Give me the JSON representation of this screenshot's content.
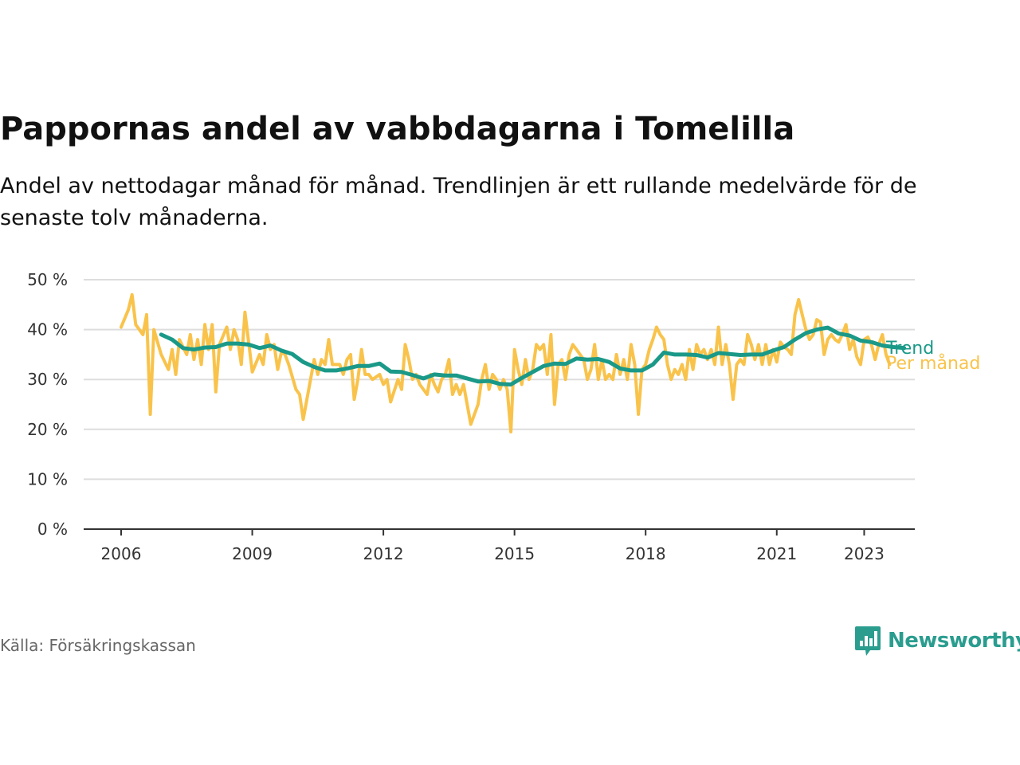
{
  "title": "Pappornas andel av vabbdagarna i Tomelilla",
  "subtitle": "Andel av nettodagar månad för månad. Trendlinjen är ett rullande medelvärde för de senaste tolv månaderna.",
  "source": "Källa: Försäkringskassan",
  "brand": {
    "name": "Newsworthy",
    "icon": "newsworthy-logo-icon"
  },
  "colors": {
    "monthly": "#f9c34b",
    "trend": "#1a9988",
    "grid": "#dddddd",
    "axis": "#333333",
    "brand": "#2a9d8f"
  },
  "chart_data": {
    "type": "line",
    "x_axis": {
      "type": "date",
      "ticks": [
        "2006",
        "2009",
        "2012",
        "2015",
        "2018",
        "2021",
        "2023"
      ],
      "range": [
        "2005-10",
        "2024-10"
      ]
    },
    "y_axis": {
      "ticks": [
        "0 %",
        "10 %",
        "20 %",
        "30 %",
        "40 %",
        "50 %"
      ],
      "range": [
        0,
        50
      ],
      "unit": "%"
    },
    "grid": "horizontal",
    "series": [
      {
        "name": "Per månad",
        "color": "#f9c34b",
        "points": [
          [
            "2006-01",
            40.5
          ],
          [
            "2006-03",
            44
          ],
          [
            "2006-04",
            47
          ],
          [
            "2006-05",
            41
          ],
          [
            "2006-07",
            39
          ],
          [
            "2006-08",
            43
          ],
          [
            "2006-09",
            23
          ],
          [
            "2006-10",
            40
          ],
          [
            "2006-12",
            35
          ],
          [
            "2007-02",
            32
          ],
          [
            "2007-03",
            36
          ],
          [
            "2007-04",
            31
          ],
          [
            "2007-05",
            38
          ],
          [
            "2007-07",
            35
          ],
          [
            "2007-08",
            39
          ],
          [
            "2007-09",
            34
          ],
          [
            "2007-10",
            38
          ],
          [
            "2007-11",
            33
          ],
          [
            "2007-12",
            41
          ],
          [
            "2008-01",
            36
          ],
          [
            "2008-02",
            41
          ],
          [
            "2008-03",
            27.5
          ],
          [
            "2008-04",
            37
          ],
          [
            "2008-06",
            40.5
          ],
          [
            "2008-07",
            36
          ],
          [
            "2008-08",
            40
          ],
          [
            "2008-09",
            38
          ],
          [
            "2008-10",
            33
          ],
          [
            "2008-11",
            43.5
          ],
          [
            "2009-01",
            31.5
          ],
          [
            "2009-03",
            35
          ],
          [
            "2009-04",
            33
          ],
          [
            "2009-05",
            39
          ],
          [
            "2009-06",
            36
          ],
          [
            "2009-07",
            37
          ],
          [
            "2009-08",
            32
          ],
          [
            "2009-09",
            35.5
          ],
          [
            "2009-10",
            35
          ],
          [
            "2009-11",
            33
          ],
          [
            "2010-01",
            28
          ],
          [
            "2010-02",
            27
          ],
          [
            "2010-03",
            22
          ],
          [
            "2010-05",
            30
          ],
          [
            "2010-06",
            34
          ],
          [
            "2010-07",
            31
          ],
          [
            "2010-08",
            34
          ],
          [
            "2010-09",
            33
          ],
          [
            "2010-10",
            38
          ],
          [
            "2010-11",
            33
          ],
          [
            "2011-01",
            33
          ],
          [
            "2011-02",
            31
          ],
          [
            "2011-03",
            34
          ],
          [
            "2011-04",
            35
          ],
          [
            "2011-05",
            26
          ],
          [
            "2011-06",
            30
          ],
          [
            "2011-07",
            36
          ],
          [
            "2011-08",
            31
          ],
          [
            "2011-09",
            31
          ],
          [
            "2011-10",
            30
          ],
          [
            "2011-12",
            31
          ],
          [
            "2012-01",
            29
          ],
          [
            "2012-02",
            30
          ],
          [
            "2012-03",
            25.5
          ],
          [
            "2012-05",
            30
          ],
          [
            "2012-06",
            28
          ],
          [
            "2012-07",
            37
          ],
          [
            "2012-08",
            34
          ],
          [
            "2012-09",
            30
          ],
          [
            "2012-10",
            31
          ],
          [
            "2012-11",
            29
          ],
          [
            "2013-01",
            27
          ],
          [
            "2013-02",
            31
          ],
          [
            "2013-03",
            29
          ],
          [
            "2013-04",
            27.5
          ],
          [
            "2013-05",
            30
          ],
          [
            "2013-06",
            31
          ],
          [
            "2013-07",
            34
          ],
          [
            "2013-08",
            27
          ],
          [
            "2013-09",
            29
          ],
          [
            "2013-10",
            27
          ],
          [
            "2013-11",
            29
          ],
          [
            "2014-01",
            21
          ],
          [
            "2014-03",
            25
          ],
          [
            "2014-04",
            30
          ],
          [
            "2014-05",
            33
          ],
          [
            "2014-06",
            28
          ],
          [
            "2014-07",
            31
          ],
          [
            "2014-08",
            30
          ],
          [
            "2014-09",
            28
          ],
          [
            "2014-10",
            30
          ],
          [
            "2014-11",
            28
          ],
          [
            "2014-12",
            19.5
          ],
          [
            "2015-01",
            36
          ],
          [
            "2015-02",
            32
          ],
          [
            "2015-03",
            29
          ],
          [
            "2015-04",
            34
          ],
          [
            "2015-05",
            30
          ],
          [
            "2015-06",
            32
          ],
          [
            "2015-07",
            37
          ],
          [
            "2015-08",
            36
          ],
          [
            "2015-09",
            37
          ],
          [
            "2015-10",
            31
          ],
          [
            "2015-11",
            39
          ],
          [
            "2015-12",
            25
          ],
          [
            "2016-01",
            33
          ],
          [
            "2016-02",
            34
          ],
          [
            "2016-03",
            30
          ],
          [
            "2016-04",
            35
          ],
          [
            "2016-05",
            37
          ],
          [
            "2016-06",
            36
          ],
          [
            "2016-07",
            35
          ],
          [
            "2016-08",
            34
          ],
          [
            "2016-09",
            30
          ],
          [
            "2016-10",
            32
          ],
          [
            "2016-11",
            37
          ],
          [
            "2016-12",
            30
          ],
          [
            "2017-01",
            34
          ],
          [
            "2017-02",
            30
          ],
          [
            "2017-03",
            31
          ],
          [
            "2017-04",
            30
          ],
          [
            "2017-05",
            35
          ],
          [
            "2017-06",
            31
          ],
          [
            "2017-07",
            34
          ],
          [
            "2017-08",
            30
          ],
          [
            "2017-09",
            37
          ],
          [
            "2017-10",
            33
          ],
          [
            "2017-11",
            23
          ],
          [
            "2017-12",
            32
          ],
          [
            "2018-01",
            33
          ],
          [
            "2018-02",
            36
          ],
          [
            "2018-03",
            38
          ],
          [
            "2018-04",
            40.5
          ],
          [
            "2018-05",
            39
          ],
          [
            "2018-06",
            38
          ],
          [
            "2018-07",
            33
          ],
          [
            "2018-08",
            30
          ],
          [
            "2018-09",
            32
          ],
          [
            "2018-10",
            31
          ],
          [
            "2018-11",
            33
          ],
          [
            "2018-12",
            30
          ],
          [
            "2019-01",
            36
          ],
          [
            "2019-02",
            32
          ],
          [
            "2019-03",
            37
          ],
          [
            "2019-04",
            35
          ],
          [
            "2019-05",
            36
          ],
          [
            "2019-06",
            34
          ],
          [
            "2019-07",
            36
          ],
          [
            "2019-08",
            33
          ],
          [
            "2019-09",
            40.5
          ],
          [
            "2019-10",
            33
          ],
          [
            "2019-11",
            37
          ],
          [
            "2019-12",
            33
          ],
          [
            "2020-01",
            26
          ],
          [
            "2020-02",
            33
          ],
          [
            "2020-03",
            34
          ],
          [
            "2020-04",
            33
          ],
          [
            "2020-05",
            39
          ],
          [
            "2020-06",
            37
          ],
          [
            "2020-07",
            34
          ],
          [
            "2020-08",
            37
          ],
          [
            "2020-09",
            33
          ],
          [
            "2020-10",
            37
          ],
          [
            "2020-11",
            33
          ],
          [
            "2020-12",
            36
          ],
          [
            "2021-01",
            33.5
          ],
          [
            "2021-02",
            37.5
          ],
          [
            "2021-03",
            36.5
          ],
          [
            "2021-04",
            36
          ],
          [
            "2021-05",
            35
          ],
          [
            "2021-06",
            43
          ],
          [
            "2021-07",
            46
          ],
          [
            "2021-08",
            43
          ],
          [
            "2021-09",
            40
          ],
          [
            "2021-10",
            38
          ],
          [
            "2021-11",
            39
          ],
          [
            "2021-12",
            42
          ],
          [
            "2022-01",
            41.5
          ],
          [
            "2022-02",
            35
          ],
          [
            "2022-03",
            38
          ],
          [
            "2022-04",
            39
          ],
          [
            "2022-05",
            38
          ],
          [
            "2022-06",
            37.5
          ],
          [
            "2022-07",
            39
          ],
          [
            "2022-08",
            41
          ],
          [
            "2022-09",
            36
          ],
          [
            "2022-10",
            38
          ],
          [
            "2022-11",
            34.5
          ],
          [
            "2022-12",
            33
          ],
          [
            "2023-01",
            38
          ],
          [
            "2023-02",
            38.5
          ],
          [
            "2023-03",
            37
          ],
          [
            "2023-04",
            34
          ],
          [
            "2023-05",
            37
          ],
          [
            "2023-06",
            39
          ],
          [
            "2023-07",
            35
          ],
          [
            "2023-08",
            33
          ]
        ]
      },
      {
        "name": "Trend",
        "color": "#1a9988",
        "points": [
          [
            "2006-12",
            39
          ],
          [
            "2007-03",
            38
          ],
          [
            "2007-06",
            36.3
          ],
          [
            "2007-09",
            36
          ],
          [
            "2007-12",
            36.4
          ],
          [
            "2008-03",
            36.5
          ],
          [
            "2008-06",
            37.2
          ],
          [
            "2008-09",
            37.2
          ],
          [
            "2008-12",
            37
          ],
          [
            "2009-03",
            36.3
          ],
          [
            "2009-06",
            36.8
          ],
          [
            "2009-09",
            35.8
          ],
          [
            "2009-12",
            35.1
          ],
          [
            "2010-03",
            33.5
          ],
          [
            "2010-06",
            32.5
          ],
          [
            "2010-09",
            31.8
          ],
          [
            "2010-12",
            31.8
          ],
          [
            "2011-03",
            32.2
          ],
          [
            "2011-06",
            32.7
          ],
          [
            "2011-09",
            32.7
          ],
          [
            "2011-12",
            33.2
          ],
          [
            "2012-03",
            31.6
          ],
          [
            "2012-06",
            31.5
          ],
          [
            "2012-09",
            30.9
          ],
          [
            "2012-12",
            30.2
          ],
          [
            "2013-03",
            31
          ],
          [
            "2013-06",
            30.8
          ],
          [
            "2013-09",
            30.8
          ],
          [
            "2013-12",
            30.2
          ],
          [
            "2014-03",
            29.6
          ],
          [
            "2014-06",
            29.7
          ],
          [
            "2014-09",
            29.1
          ],
          [
            "2014-12",
            29.0
          ],
          [
            "2015-03",
            30.3
          ],
          [
            "2015-06",
            31.5
          ],
          [
            "2015-09",
            32.7
          ],
          [
            "2015-12",
            33.2
          ],
          [
            "2016-03",
            33.1
          ],
          [
            "2016-06",
            34.2
          ],
          [
            "2016-09",
            34
          ],
          [
            "2016-12",
            34.1
          ],
          [
            "2017-03",
            33.5
          ],
          [
            "2017-06",
            32.2
          ],
          [
            "2017-09",
            31.8
          ],
          [
            "2017-12",
            31.8
          ],
          [
            "2018-03",
            33
          ],
          [
            "2018-06",
            35.4
          ],
          [
            "2018-09",
            35
          ],
          [
            "2018-12",
            35
          ],
          [
            "2019-03",
            34.9
          ],
          [
            "2019-06",
            34.4
          ],
          [
            "2019-09",
            35.3
          ],
          [
            "2019-12",
            35.1
          ],
          [
            "2020-03",
            34.9
          ],
          [
            "2020-06",
            35
          ],
          [
            "2020-09",
            35
          ],
          [
            "2020-12",
            35.8
          ],
          [
            "2021-03",
            36.5
          ],
          [
            "2021-06",
            38
          ],
          [
            "2021-09",
            39.3
          ],
          [
            "2021-12",
            40
          ],
          [
            "2022-03",
            40.4
          ],
          [
            "2022-06",
            39.2
          ],
          [
            "2022-09",
            38.8
          ],
          [
            "2022-12",
            37.8
          ],
          [
            "2023-03",
            37.5
          ],
          [
            "2023-06",
            36.8
          ],
          [
            "2023-09",
            36.5
          ],
          [
            "2023-12",
            36.3
          ]
        ]
      }
    ]
  }
}
